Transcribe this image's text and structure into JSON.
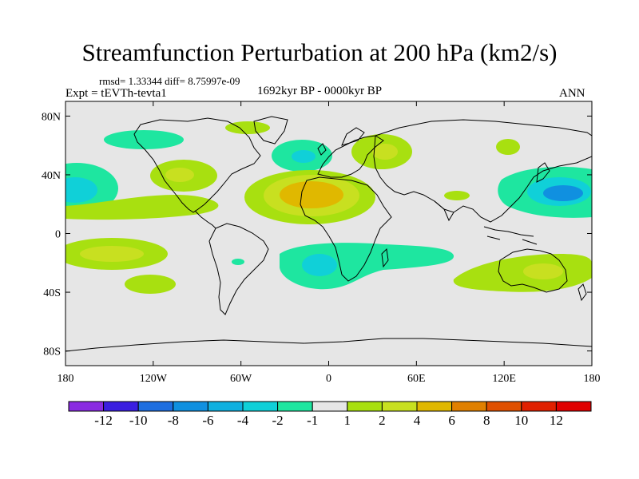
{
  "header": {
    "title": "Streamfunction Perturbation at 200 hPa (km2/s)",
    "stats": "rmsd= 1.33344 diff= 8.75997e-09",
    "left_label": "Expt = tEVTh-tevta1",
    "center_label": "1692kyr BP - 0000kyr BP",
    "right_label": "ANN"
  },
  "chart_data": {
    "type": "heatmap",
    "variable": "Streamfunction Perturbation",
    "level": "200 hPa",
    "units": "km2/s",
    "x_axis": {
      "range": [
        -180,
        180
      ],
      "ticks": [
        -180,
        -120,
        -60,
        0,
        60,
        120,
        180
      ],
      "tick_labels": [
        "180",
        "120W",
        "60W",
        "0",
        "60E",
        "120E",
        "180"
      ]
    },
    "y_axis": {
      "range": [
        -90,
        90
      ],
      "ticks": [
        80,
        40,
        0,
        -40,
        -80
      ],
      "tick_labels": [
        "80N",
        "40N",
        "0",
        "40S",
        "80S"
      ]
    },
    "colorbar": {
      "labels": [
        "-12",
        "-10",
        "-8",
        "-6",
        "-4",
        "-2",
        "-1",
        "1",
        "2",
        "4",
        "6",
        "8",
        "10",
        "12"
      ],
      "colors": [
        "#8a2be2",
        "#3a1ee0",
        "#1e6ee0",
        "#1090e0",
        "#10b0e0",
        "#10d0d8",
        "#1ee6a0",
        "#e6e6e6",
        "#a8e010",
        "#c8e020",
        "#e0b800",
        "#e08000",
        "#e05000",
        "#e02000",
        "#e00000"
      ]
    },
    "anomalies": [
      {
        "lon": -175,
        "lat": 32,
        "value": -3
      },
      {
        "lon": -122,
        "lat": 18,
        "value": 3
      },
      {
        "lon": -100,
        "lat": 42,
        "value": 3
      },
      {
        "lon": -142,
        "lat": -15,
        "value": 2
      },
      {
        "lon": -120,
        "lat": -37,
        "value": 2
      },
      {
        "lon": -150,
        "lat": 65,
        "value": -2
      },
      {
        "lon": -62,
        "lat": 74,
        "value": 2
      },
      {
        "lon": 20,
        "lat": 33,
        "value": 5
      },
      {
        "lon": -12,
        "lat": 54,
        "value": -2
      },
      {
        "lon": 45,
        "lat": 56,
        "value": 2
      },
      {
        "lon": 100,
        "lat": 60,
        "value": 2
      },
      {
        "lon": 70,
        "lat": 25,
        "value": 2
      },
      {
        "lon": 155,
        "lat": 33,
        "value": -4
      },
      {
        "lon": -8,
        "lat": -18,
        "value": -2
      },
      {
        "lon": 30,
        "lat": -20,
        "value": -2
      },
      {
        "lon": 128,
        "lat": -22,
        "value": 2
      }
    ]
  }
}
